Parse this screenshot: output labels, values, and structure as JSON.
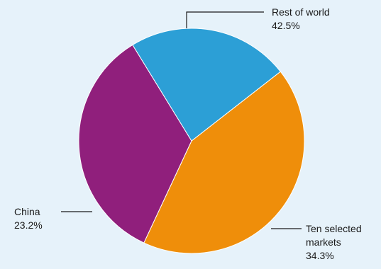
{
  "chart_data": {
    "type": "pie",
    "title": "",
    "slices": [
      {
        "label": "Rest of world",
        "label_lines": [
          "Rest of world"
        ],
        "value": 42.5,
        "value_label": "42.5%",
        "color": "#ef8e0a"
      },
      {
        "label": "Ten selected markets",
        "label_lines": [
          "Ten selected",
          "markets"
        ],
        "value": 34.3,
        "value_label": "34.3%",
        "color": "#901f7c"
      },
      {
        "label": "China",
        "label_lines": [
          "China"
        ],
        "value": 23.2,
        "value_label": "23.2%",
        "color": "#2c9fd6"
      }
    ],
    "background_color": "#e6f2fa"
  }
}
